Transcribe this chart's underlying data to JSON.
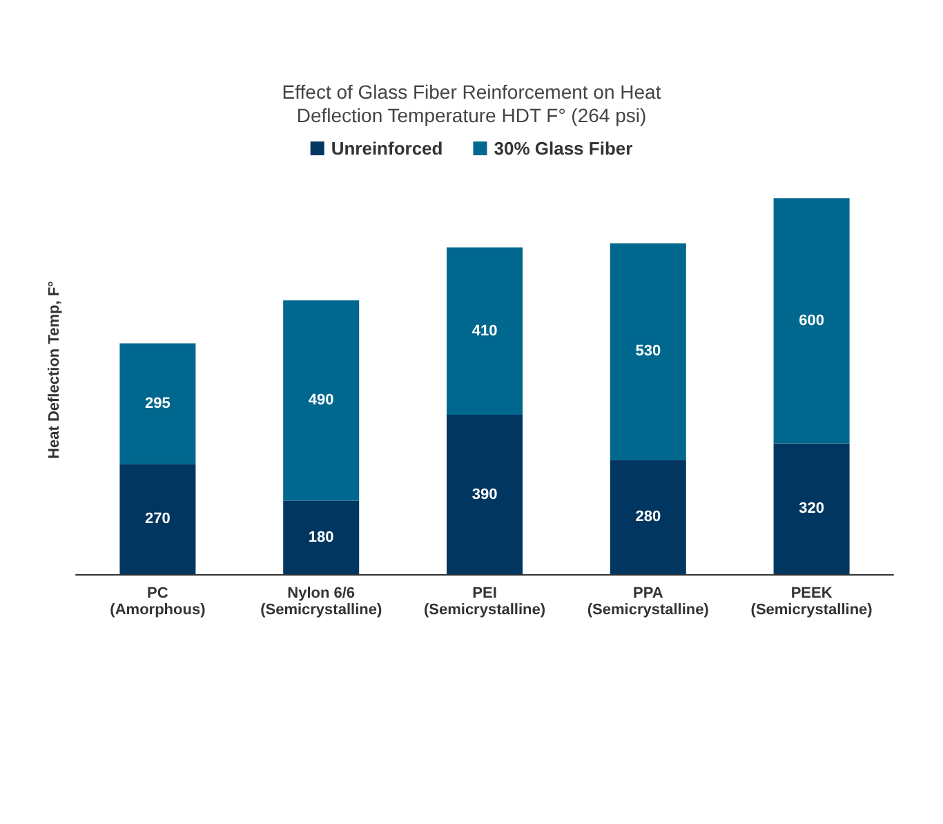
{
  "chart_data": {
    "type": "bar",
    "title": "Effect of Glass Fiber Reinforcement on Heat\nDeflection Temperature HDT F° (264 psi)",
    "ylabel": "Heat Deflection Temp, F°",
    "categories": [
      "PC\n(Amorphous)",
      "Nylon 6/6\n(Semicrystalline)",
      "PEI\n(Semicrystalline)",
      "PPA\n(Semicrystalline)",
      "PEEK\n(Semicrystalline)"
    ],
    "series": [
      {
        "name": "Unreinforced",
        "color": "#003660",
        "values": [
          270,
          180,
          390,
          280,
          320
        ]
      },
      {
        "name": "30% Glass Fiber",
        "color": "#00678e",
        "values": [
          295,
          490,
          410,
          530,
          600
        ]
      }
    ],
    "stacked": true,
    "data_labels": true,
    "legend": "top",
    "grid": false
  }
}
